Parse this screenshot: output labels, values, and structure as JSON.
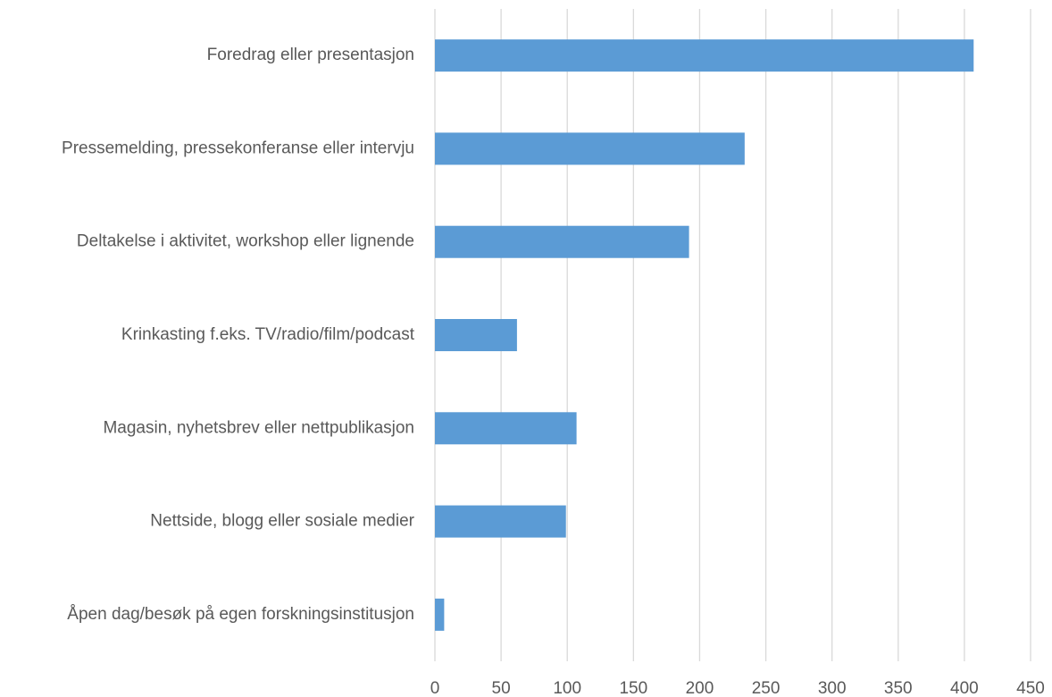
{
  "chart_data": {
    "type": "barh",
    "categories": [
      "Foredrag eller presentasjon",
      "Pressemelding, pressekonferanse eller intervju",
      "Deltakelse i aktivitet, workshop eller lignende",
      "Krinkasting f.eks. TV/radio/film/podcast",
      "Magasin, nyhetsbrev eller nettpublikasjon",
      "Nettside, blogg eller sosiale medier",
      "Åpen dag/besøk på egen forskningsinstitusjon"
    ],
    "values": [
      407,
      234,
      192,
      62,
      107,
      99,
      7
    ],
    "color": "#5b9bd5",
    "xlim": [
      0,
      450
    ],
    "xticks": [
      0,
      50,
      100,
      150,
      200,
      250,
      300,
      350,
      400,
      450
    ],
    "grid": true
  }
}
